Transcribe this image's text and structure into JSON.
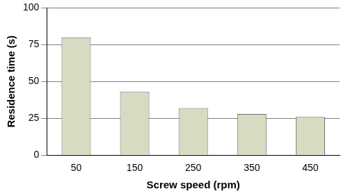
{
  "chart_data": {
    "type": "bar",
    "x_label": "Screw speed (rpm)",
    "y_label": "Residence time (s)",
    "categories": [
      "50",
      "150",
      "250",
      "350",
      "450"
    ],
    "values": [
      80,
      43,
      32,
      28,
      26
    ],
    "color": "#d8dac2",
    "ylim": [
      0,
      100
    ],
    "yticks": [
      0,
      25,
      50,
      75,
      100
    ],
    "grid": true
  }
}
